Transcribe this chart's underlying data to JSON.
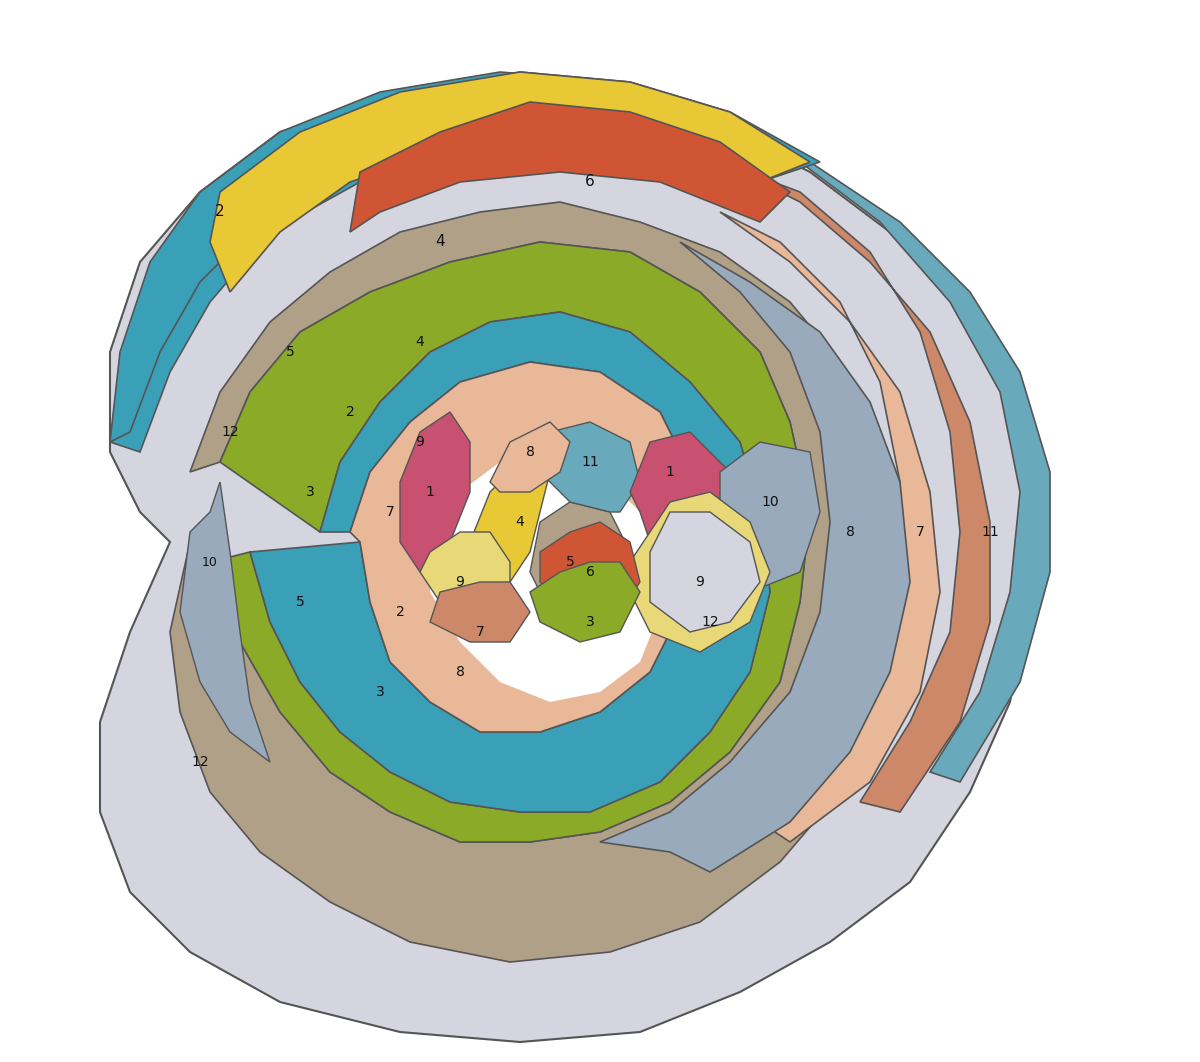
{
  "background": "#ffffff",
  "colors": {
    "1": "#c85070",
    "2": "#3aa0b8",
    "3": "#8aaa28",
    "4": "#e8c835",
    "5": "#b0a088",
    "6": "#d05535",
    "7": "#cc8868",
    "8": "#e8b898",
    "9": "#e8d878",
    "10": "#98aabb",
    "11": "#68aabc",
    "12": "#d5d5df"
  },
  "edge_color": "#555555",
  "edge_width": 1.0,
  "figsize": [
    12.0,
    10.62
  ],
  "dpi": 100
}
